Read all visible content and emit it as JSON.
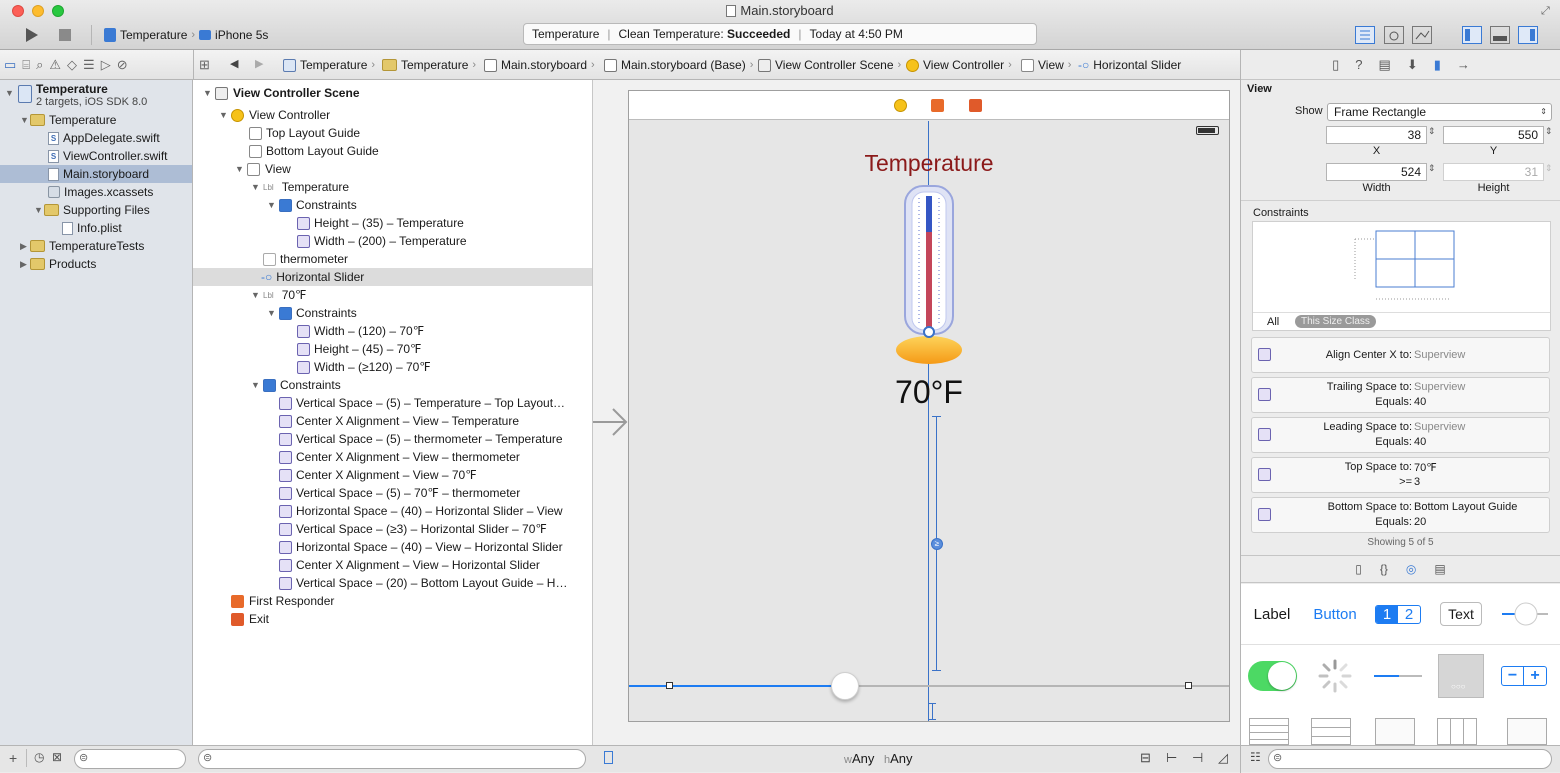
{
  "window": {
    "title": "Main.storyboard"
  },
  "toolbar": {
    "scheme_target": "Temperature",
    "scheme_device": "iPhone 5s",
    "activity_project": "Temperature",
    "activity_status_prefix": "Clean Temperature:",
    "activity_status": "Succeeded",
    "activity_time": "Today at 4:50 PM"
  },
  "jump_bar": {
    "items": [
      "Temperature",
      "Temperature",
      "Main.storyboard",
      "Main.storyboard (Base)",
      "View Controller Scene",
      "View Controller",
      "View",
      "Horizontal Slider"
    ]
  },
  "navigator": {
    "project": "Temperature",
    "project_subtitle": "2 targets, iOS SDK 8.0",
    "items": [
      {
        "label": "Temperature",
        "type": "folder"
      },
      {
        "label": "AppDelegate.swift",
        "type": "swift"
      },
      {
        "label": "ViewController.swift",
        "type": "swift"
      },
      {
        "label": "Main.storyboard",
        "type": "storyboard",
        "selected": true
      },
      {
        "label": "Images.xcassets",
        "type": "assets"
      },
      {
        "label": "Supporting Files",
        "type": "folder"
      },
      {
        "label": "Info.plist",
        "type": "plist"
      },
      {
        "label": "TemperatureTests",
        "type": "folder"
      },
      {
        "label": "Products",
        "type": "folder"
      }
    ]
  },
  "outline": {
    "scene": "View Controller Scene",
    "rows": [
      "View Controller",
      "Top Layout Guide",
      "Bottom Layout Guide",
      "View",
      "Temperature",
      "Constraints",
      "Height – (35) – Temperature",
      "Width – (200) – Temperature",
      "thermometer",
      "Horizontal Slider",
      "70℉",
      "Constraints",
      "Width – (120) – 70℉",
      "Height – (45) – 70℉",
      "Width – (≥120) – 70℉",
      "Constraints",
      "Vertical Space – (5) – Temperature – Top Layout…",
      "Center X Alignment – View – Temperature",
      "Vertical Space – (5) – thermometer – Temperature",
      "Center X Alignment – View – thermometer",
      "Center X Alignment – View – 70℉",
      "Vertical Space – (5) – 70℉ – thermometer",
      "Horizontal Space – (40) – Horizontal Slider – View",
      "Vertical Space – (≥3) – Horizontal Slider – 70℉",
      "Horizontal Space – (40) – View – Horizontal Slider",
      "Center X Alignment – View – Horizontal Slider",
      "Vertical Space – (20) – Bottom Layout Guide – H…",
      "First Responder",
      "Exit"
    ]
  },
  "canvas": {
    "label_title": "Temperature",
    "label_temp": "70°F",
    "slider_value": 0.36,
    "size_w": "w",
    "size_w_val": "Any",
    "size_h": "h",
    "size_h_val": "Any"
  },
  "inspector": {
    "section_view": "View",
    "show_label": "Show",
    "show_value": "Frame Rectangle",
    "x": "38",
    "y": "550",
    "width": "524",
    "height": "31",
    "x_label": "X",
    "y_label": "Y",
    "width_label": "Width",
    "height_label": "Height",
    "constraints_title": "Constraints",
    "tab_all": "All",
    "tab_size_class": "This Size Class",
    "constraints": [
      {
        "title": "Align Center X to:",
        "target": "Superview",
        "equals_label": "",
        "equals": ""
      },
      {
        "title": "Trailing Space to:",
        "target": "Superview",
        "equals_label": "Equals:",
        "equals": "40"
      },
      {
        "title": "Leading Space to:",
        "target": "Superview",
        "equals_label": "Equals:",
        "equals": "40"
      },
      {
        "title": "Top Space to:",
        "target": "70℉",
        "equals_label": ">=",
        "equals": "3"
      },
      {
        "title": "Bottom Space to:",
        "target": "Bottom Layout Guide",
        "equals_label": "Equals:",
        "equals": "20"
      }
    ],
    "showing": "Showing 5 of 5"
  },
  "library": {
    "label": "Label",
    "button": "Button",
    "seg1": "1",
    "seg2": "2",
    "text": "Text"
  },
  "colors": {
    "accent": "#1d7cf2",
    "title_red": "#8b1a1a",
    "switch_green": "#4cd964"
  }
}
